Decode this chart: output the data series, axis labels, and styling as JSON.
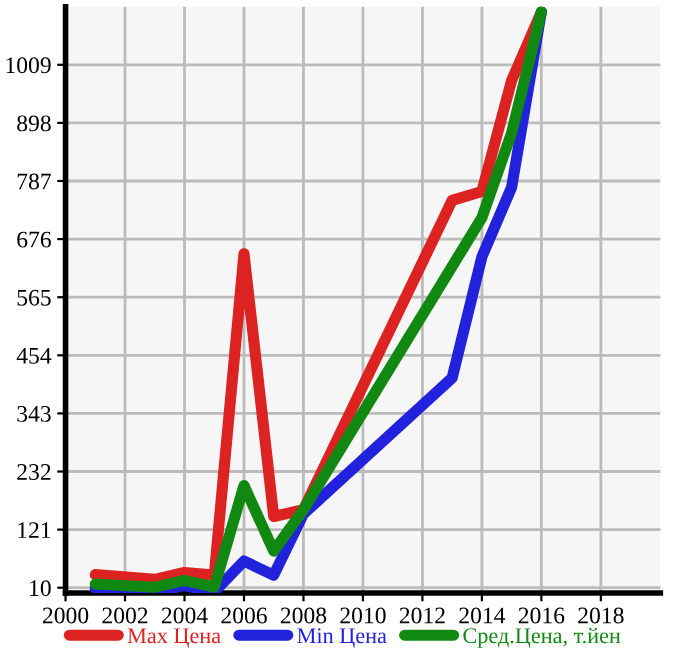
{
  "chart_data": {
    "type": "line",
    "xlim": [
      2000,
      2020
    ],
    "xticks": [
      2000,
      2002,
      2004,
      2006,
      2008,
      2010,
      2012,
      2014,
      2016,
      2018
    ],
    "ylim": [
      0,
      1120
    ],
    "yticks": [
      10,
      121,
      232,
      343,
      454,
      565,
      676,
      787,
      898,
      1009
    ],
    "grid": true,
    "legend": "bottom",
    "marker": "none",
    "line_style": "solid",
    "series": [
      {
        "name": "Max Цена",
        "color": "#dd2222",
        "x": [
          2001,
          2003,
          2004,
          2005,
          2006,
          2007,
          2008,
          2013,
          2014,
          2015,
          2016
        ],
        "values": [
          35,
          26,
          39,
          34,
          648,
          146,
          159,
          750,
          767,
          979,
          1110
        ]
      },
      {
        "name": "Min Цена",
        "color": "#2222dd",
        "x": [
          2001,
          2003,
          2004,
          2005,
          2006,
          2007,
          2008,
          2013,
          2014,
          2015,
          2016
        ],
        "values": [
          9,
          2,
          14,
          2,
          61,
          34,
          151,
          411,
          642,
          775,
          1110
        ]
      },
      {
        "name": "Сред.Цена, т.йен",
        "color": "#118811",
        "x": [
          2001,
          2003,
          2004,
          2005,
          2006,
          2007,
          2008,
          2014,
          2015,
          2016
        ],
        "values": [
          17,
          11,
          24,
          11,
          205,
          80,
          159,
          717,
          879,
          1110
        ]
      }
    ]
  }
}
